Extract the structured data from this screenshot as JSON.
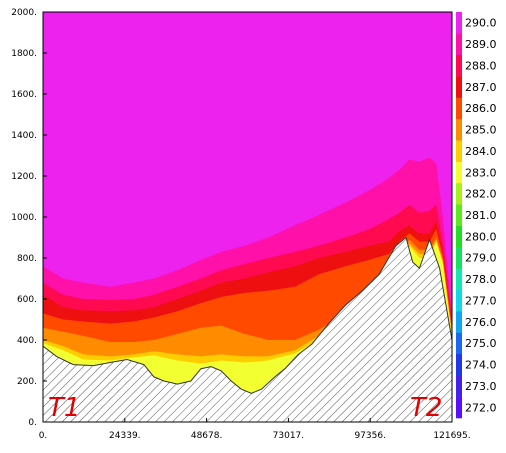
{
  "chart_data": {
    "type": "area",
    "title": "",
    "xlabel": "",
    "ylabel": "",
    "xlim": [
      0,
      121695
    ],
    "ylim": [
      0,
      2000
    ],
    "x_ticks": [
      "0.",
      "24339.",
      "48678.",
      "73017.",
      "97356.",
      "121695."
    ],
    "y_ticks": [
      "0.",
      "200.",
      "400.",
      "600.",
      "800.",
      "1000.",
      "1200.",
      "1400.",
      "1600.",
      "1800.",
      "2000."
    ],
    "endpoint_labels": [
      "T1",
      "T2"
    ],
    "colorbar": {
      "labels": [
        "272.0",
        "273.0",
        "274.0",
        "275.0",
        "276.0",
        "277.0",
        "278.0",
        "279.0",
        "280.0",
        "281.0",
        "282.0",
        "283.0",
        "284.0",
        "285.0",
        "286.0",
        "287.0",
        "288.0",
        "289.0",
        "290.0"
      ],
      "colors": [
        "#5a10ff",
        "#4422ee",
        "#2038e8",
        "#1c66f0",
        "#10a6f2",
        "#10d8e8",
        "#14e8b0",
        "#16e060",
        "#22dd22",
        "#5ce81a",
        "#a8ee18",
        "#f2ff30",
        "#ffcc00",
        "#ff8c00",
        "#ff4a00",
        "#ee1010",
        "#ff0a50",
        "#ff10a8",
        "#ee22ee"
      ]
    },
    "terrain": {
      "x": [
        0,
        4000,
        9000,
        15000,
        20000,
        25000,
        30000,
        33000,
        36000,
        40000,
        44000,
        47000,
        50000,
        53000,
        56000,
        59000,
        62000,
        65000,
        69000,
        72000,
        76000,
        80000,
        85000,
        90000,
        95000,
        100000,
        105000,
        108000,
        110000,
        112000,
        115000,
        118000,
        121695
      ],
      "height": [
        370,
        320,
        280,
        275,
        290,
        305,
        280,
        220,
        200,
        185,
        200,
        260,
        270,
        250,
        200,
        160,
        140,
        160,
        220,
        260,
        330,
        380,
        480,
        570,
        640,
        720,
        860,
        900,
        780,
        750,
        890,
        750,
        400
      ]
    },
    "contour_tops": {
      "x": [
        0,
        6000,
        12000,
        20000,
        27000,
        33000,
        40000,
        47000,
        53000,
        60000,
        67000,
        75000,
        82000,
        90000,
        97000,
        103000,
        106000,
        109000,
        112000,
        115000,
        117000,
        119000,
        121695
      ],
      "levels": [
        {
          "temperature": 283,
          "height": [
            385,
            350,
            305,
            300,
            315,
            325,
            300,
            285,
            300,
            290,
            300,
            335,
            400,
            490,
            590,
            700,
            780,
            860,
            800,
            800,
            880,
            770,
            420
          ]
        },
        {
          "temperature": 284,
          "height": [
            400,
            370,
            330,
            320,
            330,
            345,
            330,
            320,
            330,
            320,
            320,
            350,
            420,
            510,
            610,
            720,
            800,
            870,
            820,
            820,
            890,
            780,
            430
          ]
        },
        {
          "temperature": 285,
          "height": [
            460,
            440,
            420,
            390,
            390,
            400,
            430,
            460,
            470,
            430,
            400,
            400,
            450,
            530,
            630,
            740,
            820,
            890,
            840,
            840,
            900,
            790,
            440
          ]
        },
        {
          "temperature": 286,
          "height": [
            530,
            500,
            490,
            480,
            490,
            510,
            540,
            580,
            610,
            630,
            640,
            660,
            720,
            760,
            790,
            820,
            880,
            920,
            880,
            880,
            940,
            810,
            460
          ]
        },
        {
          "temperature": 287,
          "height": [
            620,
            560,
            545,
            540,
            545,
            560,
            600,
            640,
            680,
            700,
            730,
            760,
            800,
            830,
            860,
            880,
            930,
            960,
            920,
            920,
            980,
            830,
            480
          ]
        },
        {
          "temperature": 288,
          "height": [
            680,
            620,
            600,
            595,
            600,
            620,
            660,
            700,
            740,
            770,
            800,
            830,
            860,
            900,
            940,
            990,
            1020,
            1060,
            1020,
            1030,
            1060,
            870,
            500
          ]
        },
        {
          "temperature": 289,
          "height": [
            760,
            700,
            680,
            660,
            680,
            700,
            740,
            790,
            830,
            860,
            900,
            960,
            1010,
            1070,
            1130,
            1190,
            1230,
            1280,
            1270,
            1290,
            1260,
            1000,
            520
          ]
        }
      ]
    },
    "background_temperature": 290
  }
}
